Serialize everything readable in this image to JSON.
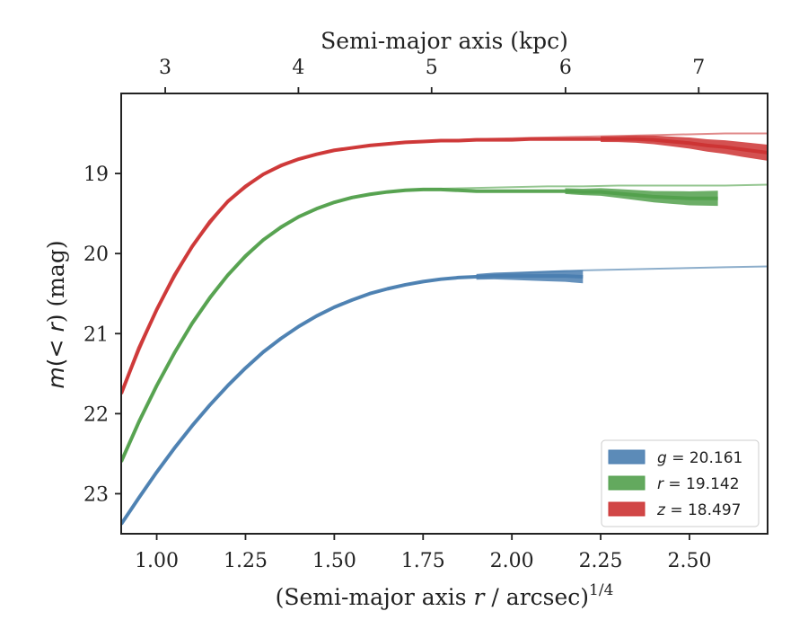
{
  "chart_data": {
    "type": "line",
    "xlabel": "(Semi-major axis r / arcsec)^1/4",
    "xlabel_main": "(Semi-major axis ",
    "xlabel_var": "r",
    "xlabel_tail": " / arcsec)",
    "xlabel_sup": "1/4",
    "ylabel": "m(< r) (mag)",
    "ylabel_var": "m",
    "ylabel_open": "(",
    "ylabel_lt": "< ",
    "ylabel_r": "r",
    "ylabel_tail": ") (mag)",
    "top_xlabel": "Semi-major axis (kpc)",
    "xlim": [
      0.9,
      2.72
    ],
    "ylim": [
      23.5,
      18.0
    ],
    "y_inverted": true,
    "x_ticks": [
      "1.00",
      "1.25",
      "1.50",
      "1.75",
      "2.00",
      "2.25",
      "2.50"
    ],
    "x_tick_values": [
      1.0,
      1.25,
      1.5,
      1.75,
      2.0,
      2.25,
      2.5
    ],
    "y_ticks": [
      "19",
      "20",
      "21",
      "22",
      "23"
    ],
    "y_tick_values": [
      19,
      20,
      21,
      22,
      23
    ],
    "top_ticks": [
      "3",
      "4",
      "5",
      "6",
      "7"
    ],
    "top_tick_positions_x": [
      1.024,
      1.399,
      1.774,
      2.151,
      2.526
    ],
    "grid": false,
    "legend_position": "lower-right",
    "series": [
      {
        "name": "g",
        "legend_var": "g",
        "legend_value": " = 20.161",
        "color": "#4a7eb0",
        "x": [
          0.9,
          0.95,
          1.0,
          1.05,
          1.1,
          1.15,
          1.2,
          1.25,
          1.3,
          1.35,
          1.4,
          1.45,
          1.5,
          1.55,
          1.6,
          1.65,
          1.7,
          1.75,
          1.8,
          1.85,
          1.9,
          1.95,
          2.0,
          2.05,
          2.1,
          2.15,
          2.2
        ],
        "y": [
          23.38,
          23.05,
          22.73,
          22.43,
          22.15,
          21.89,
          21.65,
          21.43,
          21.23,
          21.06,
          20.91,
          20.78,
          20.67,
          20.58,
          20.5,
          20.44,
          20.39,
          20.35,
          20.32,
          20.3,
          20.29,
          20.28,
          20.28,
          20.28,
          20.28,
          20.28,
          20.29
        ]
      },
      {
        "name": "r",
        "legend_var": "r",
        "legend_value": " = 19.142",
        "color": "#52a04c",
        "x": [
          0.9,
          0.95,
          1.0,
          1.05,
          1.1,
          1.15,
          1.2,
          1.25,
          1.3,
          1.35,
          1.4,
          1.45,
          1.5,
          1.55,
          1.6,
          1.65,
          1.7,
          1.75,
          1.8,
          1.85,
          1.9,
          1.95,
          2.0,
          2.05,
          2.1,
          2.15,
          2.2,
          2.25,
          2.3,
          2.35,
          2.4,
          2.45,
          2.5,
          2.58
        ],
        "y": [
          22.6,
          22.1,
          21.65,
          21.24,
          20.87,
          20.55,
          20.27,
          20.03,
          19.83,
          19.67,
          19.54,
          19.44,
          19.36,
          19.3,
          19.26,
          19.23,
          19.21,
          19.2,
          19.2,
          19.21,
          19.22,
          19.22,
          19.22,
          19.22,
          19.22,
          19.22,
          19.23,
          19.23,
          19.25,
          19.27,
          19.29,
          19.3,
          19.31,
          19.31
        ]
      },
      {
        "name": "z",
        "legend_var": "z",
        "legend_value": " = 18.497",
        "color": "#cc3333",
        "x": [
          0.9,
          0.95,
          1.0,
          1.05,
          1.1,
          1.15,
          1.2,
          1.25,
          1.3,
          1.35,
          1.4,
          1.45,
          1.5,
          1.55,
          1.6,
          1.65,
          1.7,
          1.75,
          1.8,
          1.85,
          1.9,
          1.95,
          2.0,
          2.05,
          2.1,
          2.15,
          2.2,
          2.25,
          2.3,
          2.35,
          2.4,
          2.45,
          2.5,
          2.55,
          2.6,
          2.65,
          2.72
        ],
        "y": [
          21.75,
          21.18,
          20.7,
          20.27,
          19.91,
          19.6,
          19.35,
          19.16,
          19.01,
          18.9,
          18.82,
          18.76,
          18.71,
          18.68,
          18.65,
          18.63,
          18.61,
          18.6,
          18.59,
          18.59,
          18.58,
          18.58,
          18.58,
          18.57,
          18.57,
          18.57,
          18.57,
          18.57,
          18.57,
          18.57,
          18.58,
          18.6,
          18.62,
          18.65,
          18.67,
          18.7,
          18.74
        ]
      }
    ],
    "fit_curves": [
      {
        "color": "#8daecb",
        "x": [
          0.9,
          1.0,
          1.1,
          1.2,
          1.3,
          1.4,
          1.5,
          1.6,
          1.7,
          1.8,
          1.9,
          2.0,
          2.1,
          2.2,
          2.3,
          2.4,
          2.5,
          2.6,
          2.72
        ],
        "y": [
          23.38,
          22.73,
          22.15,
          21.65,
          21.23,
          20.91,
          20.67,
          20.5,
          20.39,
          20.32,
          20.28,
          20.25,
          20.23,
          20.21,
          20.2,
          20.19,
          20.18,
          20.17,
          20.16
        ]
      },
      {
        "color": "#95c691",
        "x": [
          0.9,
          1.0,
          1.1,
          1.2,
          1.3,
          1.4,
          1.5,
          1.6,
          1.7,
          1.8,
          1.9,
          2.0,
          2.1,
          2.2,
          2.3,
          2.4,
          2.5,
          2.6,
          2.72
        ],
        "y": [
          22.6,
          21.65,
          20.87,
          20.27,
          19.83,
          19.54,
          19.36,
          19.26,
          19.21,
          19.19,
          19.18,
          19.17,
          19.16,
          19.16,
          19.15,
          19.15,
          19.15,
          19.15,
          19.14
        ]
      },
      {
        "color": "#e08a8a",
        "x": [
          0.9,
          1.0,
          1.1,
          1.2,
          1.3,
          1.4,
          1.5,
          1.6,
          1.7,
          1.8,
          1.9,
          2.0,
          2.1,
          2.2,
          2.3,
          2.4,
          2.5,
          2.6,
          2.72
        ],
        "y": [
          21.75,
          20.7,
          19.91,
          19.35,
          19.01,
          18.82,
          18.71,
          18.65,
          18.61,
          18.59,
          18.57,
          18.56,
          18.55,
          18.54,
          18.53,
          18.52,
          18.51,
          18.5,
          18.5
        ]
      }
    ]
  }
}
